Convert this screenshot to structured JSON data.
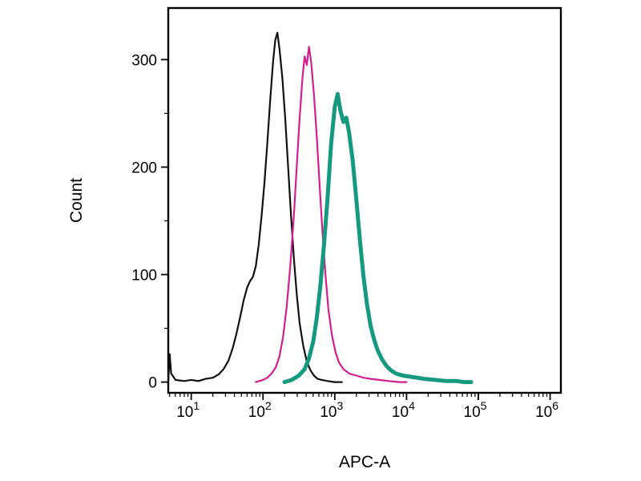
{
  "page": {
    "background": "#ffffff"
  },
  "chart_data": {
    "type": "line",
    "subtype": "flow-cytometry-overlay-histogram",
    "title": "",
    "xlabel": "APC-A",
    "ylabel": "Count",
    "x_scale": "log10",
    "x_range_log10": [
      0.68,
      6.15
    ],
    "y_range": [
      -10,
      348
    ],
    "x_tick_base": "10",
    "x_major_ticks_exponents": [
      1,
      2,
      3,
      4,
      5,
      6
    ],
    "y_major_ticks": [
      0,
      100,
      200,
      300
    ],
    "y_minor_ticks": [
      50,
      150,
      250
    ],
    "grid": false,
    "legend": null,
    "frame_color": "#000000",
    "series": [
      {
        "name": "black",
        "color": "#111111",
        "stroke_width": 2.2,
        "peak": {
          "x_log10": 2.2,
          "count": 325
        },
        "points_log10x_count": [
          [
            0.68,
            0
          ],
          [
            0.7,
            26
          ],
          [
            0.72,
            8
          ],
          [
            0.78,
            2
          ],
          [
            0.9,
            1
          ],
          [
            1.0,
            2
          ],
          [
            1.1,
            1
          ],
          [
            1.2,
            3
          ],
          [
            1.3,
            4
          ],
          [
            1.38,
            7
          ],
          [
            1.45,
            12
          ],
          [
            1.52,
            20
          ],
          [
            1.58,
            32
          ],
          [
            1.63,
            45
          ],
          [
            1.68,
            60
          ],
          [
            1.73,
            76
          ],
          [
            1.78,
            88
          ],
          [
            1.82,
            94
          ],
          [
            1.86,
            98
          ],
          [
            1.9,
            108
          ],
          [
            1.94,
            128
          ],
          [
            1.98,
            155
          ],
          [
            2.02,
            185
          ],
          [
            2.06,
            222
          ],
          [
            2.1,
            262
          ],
          [
            2.14,
            298
          ],
          [
            2.17,
            318
          ],
          [
            2.2,
            325
          ],
          [
            2.23,
            310
          ],
          [
            2.27,
            283
          ],
          [
            2.31,
            245
          ],
          [
            2.35,
            200
          ],
          [
            2.39,
            155
          ],
          [
            2.43,
            115
          ],
          [
            2.47,
            82
          ],
          [
            2.51,
            55
          ],
          [
            2.56,
            34
          ],
          [
            2.61,
            19
          ],
          [
            2.66,
            11
          ],
          [
            2.71,
            6
          ],
          [
            2.76,
            3
          ],
          [
            2.82,
            2
          ],
          [
            2.9,
            1
          ],
          [
            3.0,
            0
          ],
          [
            3.1,
            0
          ]
        ]
      },
      {
        "name": "magenta",
        "color": "#d0208f",
        "stroke_width": 2.2,
        "peak": {
          "x_log10": 2.64,
          "count": 312
        },
        "points_log10x_count": [
          [
            1.9,
            0
          ],
          [
            2.0,
            2
          ],
          [
            2.06,
            4
          ],
          [
            2.12,
            8
          ],
          [
            2.18,
            14
          ],
          [
            2.23,
            24
          ],
          [
            2.28,
            42
          ],
          [
            2.33,
            70
          ],
          [
            2.38,
            108
          ],
          [
            2.43,
            155
          ],
          [
            2.47,
            200
          ],
          [
            2.51,
            245
          ],
          [
            2.55,
            283
          ],
          [
            2.58,
            303
          ],
          [
            2.61,
            295
          ],
          [
            2.64,
            312
          ],
          [
            2.67,
            298
          ],
          [
            2.71,
            268
          ],
          [
            2.75,
            228
          ],
          [
            2.79,
            182
          ],
          [
            2.83,
            138
          ],
          [
            2.87,
            100
          ],
          [
            2.91,
            68
          ],
          [
            2.96,
            44
          ],
          [
            3.01,
            28
          ],
          [
            3.06,
            18
          ],
          [
            3.12,
            12
          ],
          [
            3.2,
            8
          ],
          [
            3.3,
            6
          ],
          [
            3.4,
            4
          ],
          [
            3.5,
            3
          ],
          [
            3.62,
            2
          ],
          [
            3.75,
            1
          ],
          [
            3.9,
            0
          ],
          [
            4.0,
            0
          ]
        ]
      },
      {
        "name": "teal",
        "color": "#169a7f",
        "stroke_width": 5,
        "peak": {
          "x_log10": 3.04,
          "count": 268
        },
        "points_log10x_count": [
          [
            2.3,
            0
          ],
          [
            2.4,
            2
          ],
          [
            2.5,
            6
          ],
          [
            2.58,
            12
          ],
          [
            2.64,
            22
          ],
          [
            2.7,
            38
          ],
          [
            2.75,
            60
          ],
          [
            2.8,
            90
          ],
          [
            2.85,
            128
          ],
          [
            2.9,
            172
          ],
          [
            2.95,
            222
          ],
          [
            3.0,
            256
          ],
          [
            3.04,
            268
          ],
          [
            3.08,
            252
          ],
          [
            3.12,
            242
          ],
          [
            3.16,
            246
          ],
          [
            3.2,
            232
          ],
          [
            3.25,
            206
          ],
          [
            3.3,
            170
          ],
          [
            3.35,
            132
          ],
          [
            3.4,
            98
          ],
          [
            3.45,
            72
          ],
          [
            3.5,
            52
          ],
          [
            3.55,
            39
          ],
          [
            3.6,
            29
          ],
          [
            3.66,
            21
          ],
          [
            3.72,
            15
          ],
          [
            3.78,
            11
          ],
          [
            3.85,
            8
          ],
          [
            3.95,
            6
          ],
          [
            4.05,
            5
          ],
          [
            4.15,
            4
          ],
          [
            4.25,
            3
          ],
          [
            4.4,
            2
          ],
          [
            4.55,
            1
          ],
          [
            4.7,
            1
          ],
          [
            4.8,
            0
          ],
          [
            4.9,
            0
          ]
        ]
      }
    ]
  }
}
